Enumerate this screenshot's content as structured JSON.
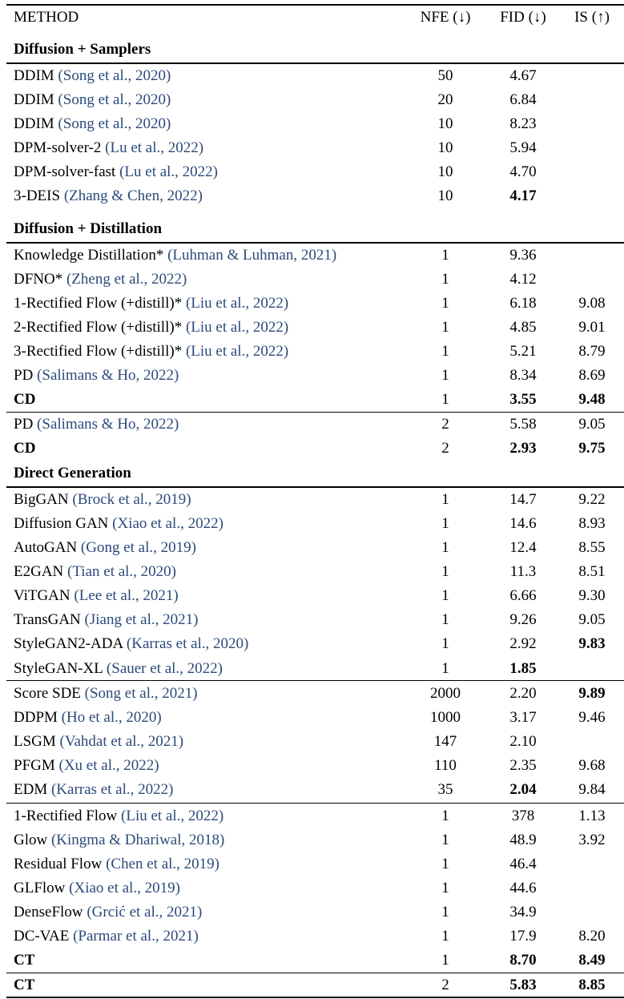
{
  "header": {
    "method": "METHOD",
    "nfe": "NFE (↓)",
    "fid": "FID (↓)",
    "is": "IS (↑)"
  },
  "rows": [
    {
      "kind": "section",
      "label": "Diffusion + Samplers"
    },
    {
      "name": "DDIM",
      "cite": "(Song et al., 2020)",
      "nfe": "50",
      "fid": "4.67",
      "is": ""
    },
    {
      "name": "DDIM",
      "cite": "(Song et al., 2020)",
      "nfe": "20",
      "fid": "6.84",
      "is": ""
    },
    {
      "name": "DDIM",
      "cite": "(Song et al., 2020)",
      "nfe": "10",
      "fid": "8.23",
      "is": ""
    },
    {
      "name": "DPM-solver-2",
      "cite": "(Lu et al., 2022)",
      "nfe": "10",
      "fid": "5.94",
      "is": ""
    },
    {
      "name": "DPM-solver-fast",
      "cite": "(Lu et al., 2022)",
      "nfe": "10",
      "fid": "4.70",
      "is": ""
    },
    {
      "name": "3-DEIS",
      "cite": "(Zhang & Chen, 2022)",
      "nfe": "10",
      "fid": "4.17",
      "is": "",
      "bold_fid": true
    },
    {
      "kind": "section",
      "label": "Diffusion + Distillation"
    },
    {
      "name": "Knowledge Distillation*",
      "cite": "(Luhman & Luhman, 2021)",
      "nfe": "1",
      "fid": "9.36",
      "is": ""
    },
    {
      "name": "DFNO*",
      "cite": "(Zheng et al., 2022)",
      "nfe": "1",
      "fid": "4.12",
      "is": ""
    },
    {
      "name": "1-Rectified Flow (+distill)*",
      "cite": "(Liu et al., 2022)",
      "nfe": "1",
      "fid": "6.18",
      "is": "9.08"
    },
    {
      "name": "2-Rectified Flow (+distill)*",
      "cite": "(Liu et al., 2022)",
      "nfe": "1",
      "fid": "4.85",
      "is": "9.01"
    },
    {
      "name": "3-Rectified Flow (+distill)*",
      "cite": "(Liu et al., 2022)",
      "nfe": "1",
      "fid": "5.21",
      "is": "8.79"
    },
    {
      "name": "PD",
      "cite": "(Salimans & Ho, 2022)",
      "nfe": "1",
      "fid": "8.34",
      "is": "8.69"
    },
    {
      "name": "CD",
      "cite": "",
      "nfe": "1",
      "fid": "3.55",
      "is": "9.48",
      "bold_name": true,
      "bold_fid": true,
      "bold_is": true
    },
    {
      "name": "PD",
      "cite": "(Salimans & Ho, 2022)",
      "nfe": "2",
      "fid": "5.58",
      "is": "9.05"
    },
    {
      "name": "CD",
      "cite": "",
      "nfe": "2",
      "fid": "2.93",
      "is": "9.75",
      "bold_name": true,
      "bold_fid": true,
      "bold_is": true
    },
    {
      "kind": "section",
      "label": "Direct Generation"
    },
    {
      "name": "BigGAN",
      "cite": "(Brock et al., 2019)",
      "nfe": "1",
      "fid": "14.7",
      "is": "9.22"
    },
    {
      "name": "Diffusion GAN",
      "cite": "(Xiao et al., 2022)",
      "nfe": "1",
      "fid": "14.6",
      "is": "8.93"
    },
    {
      "name": "AutoGAN",
      "cite": "(Gong et al., 2019)",
      "nfe": "1",
      "fid": "12.4",
      "is": "8.55"
    },
    {
      "name": "E2GAN",
      "cite": "(Tian et al., 2020)",
      "nfe": "1",
      "fid": "11.3",
      "is": "8.51"
    },
    {
      "name": "ViTGAN",
      "cite": "(Lee et al., 2021)",
      "nfe": "1",
      "fid": "6.66",
      "is": "9.30"
    },
    {
      "name": "TransGAN",
      "cite": "(Jiang et al., 2021)",
      "nfe": "1",
      "fid": "9.26",
      "is": "9.05"
    },
    {
      "name": "StyleGAN2-ADA",
      "cite": "(Karras et al., 2020)",
      "nfe": "1",
      "fid": "2.92",
      "is": "9.83",
      "bold_is": true
    },
    {
      "name": "StyleGAN-XL",
      "cite": "(Sauer et al., 2022)",
      "nfe": "1",
      "fid": "1.85",
      "is": "",
      "bold_fid": true
    },
    {
      "name": "Score SDE",
      "cite": "(Song et al., 2021)",
      "nfe": "2000",
      "fid": "2.20",
      "is": "9.89",
      "bold_is": true
    },
    {
      "name": "DDPM",
      "cite": "(Ho et al., 2020)",
      "nfe": "1000",
      "fid": "3.17",
      "is": "9.46"
    },
    {
      "name": "LSGM",
      "cite": "(Vahdat et al., 2021)",
      "nfe": "147",
      "fid": "2.10",
      "is": ""
    },
    {
      "name": "PFGM",
      "cite": "(Xu et al., 2022)",
      "nfe": "110",
      "fid": "2.35",
      "is": "9.68"
    },
    {
      "name": "EDM",
      "cite": "(Karras et al., 2022)",
      "nfe": "35",
      "fid": "2.04",
      "is": "9.84",
      "bold_fid": true
    },
    {
      "name": "1-Rectified Flow",
      "cite": "(Liu et al., 2022)",
      "nfe": "1",
      "fid": "378",
      "is": "1.13"
    },
    {
      "name": "Glow",
      "cite": "(Kingma & Dhariwal, 2018)",
      "nfe": "1",
      "fid": "48.9",
      "is": "3.92"
    },
    {
      "name": "Residual Flow",
      "cite": "(Chen et al., 2019)",
      "nfe": "1",
      "fid": "46.4",
      "is": ""
    },
    {
      "name": "GLFlow",
      "cite": "(Xiao et al., 2019)",
      "nfe": "1",
      "fid": "44.6",
      "is": ""
    },
    {
      "name": "DenseFlow",
      "cite": "(Grcić et al., 2021)",
      "nfe": "1",
      "fid": "34.9",
      "is": ""
    },
    {
      "name": "DC-VAE",
      "cite": "(Parmar et al., 2021)",
      "nfe": "1",
      "fid": "17.9",
      "is": "8.20"
    },
    {
      "name": "CT",
      "cite": "",
      "nfe": "1",
      "fid": "8.70",
      "is": "8.49",
      "bold_name": true,
      "bold_fid": true,
      "bold_is": true
    },
    {
      "name": "CT",
      "cite": "",
      "nfe": "2",
      "fid": "5.83",
      "is": "8.85",
      "bold_name": true,
      "bold_fid": true,
      "bold_is": true
    }
  ]
}
